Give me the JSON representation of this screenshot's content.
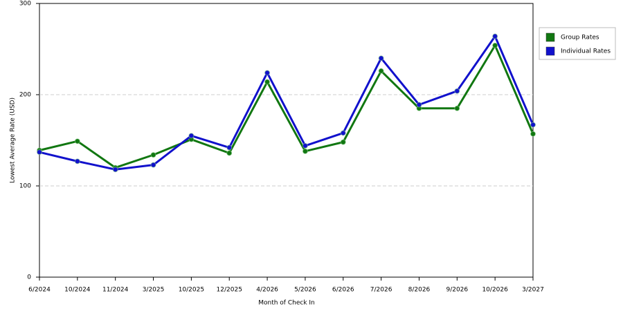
{
  "chart_data": {
    "type": "line",
    "x_label": "Month of Check In",
    "y_label": "Lowest Average Rate (USD)",
    "categories": [
      "6/2024",
      "10/2024",
      "11/2024",
      "3/2025",
      "10/2025",
      "12/2025",
      "4/2026",
      "5/2026",
      "6/2026",
      "7/2026",
      "8/2026",
      "9/2026",
      "10/2026",
      "3/2027"
    ],
    "series": [
      {
        "name": "Group Rates",
        "color": "#117711",
        "values": [
          139,
          149,
          120,
          134,
          151,
          136,
          214,
          138,
          148,
          226,
          185,
          185,
          254,
          157
        ]
      },
      {
        "name": "Individual Rates",
        "color": "#1111cc",
        "values": [
          137,
          127,
          118,
          123,
          155,
          142,
          224,
          144,
          158,
          240,
          189,
          204,
          264,
          167
        ]
      }
    ],
    "ylim": [
      0,
      300
    ],
    "yticks": [
      0,
      100,
      200,
      300
    ],
    "grid": true,
    "legend": "right"
  }
}
